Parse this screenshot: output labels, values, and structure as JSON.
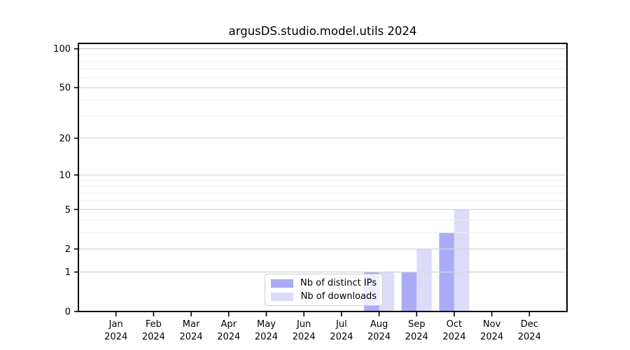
{
  "chart_data": {
    "type": "bar",
    "title": "argusDS.studio.model.utils 2024",
    "categories": [
      "Jan",
      "Feb",
      "Mar",
      "Apr",
      "May",
      "Jun",
      "Jul",
      "Aug",
      "Sep",
      "Oct",
      "Nov",
      "Dec"
    ],
    "category_year": "2024",
    "series": [
      {
        "name": "Nb of distinct IPs",
        "color": "#aaaaf7",
        "values": [
          0,
          0,
          0,
          0,
          0,
          0,
          0,
          1,
          1,
          3,
          0,
          0
        ]
      },
      {
        "name": "Nb of downloads",
        "color": "#dcdcf9",
        "values": [
          0,
          0,
          0,
          0,
          0,
          0,
          0,
          1,
          2,
          5,
          0,
          0
        ]
      }
    ],
    "yscale": "log1p",
    "ylim": [
      0,
      110
    ],
    "yticks_major": [
      0,
      1,
      2,
      5,
      10,
      20,
      50,
      100
    ],
    "yticks_minor": [
      3,
      4,
      6,
      7,
      8,
      9,
      30,
      40,
      60,
      70,
      80,
      90
    ],
    "grid": {
      "major_color": "#d6d6d6",
      "top_major_color": "#c9c9c9",
      "minor_color": "#efefef",
      "show": true
    },
    "axis_color": "#000000",
    "tick_label_color": "#000000",
    "legend": {
      "position": "lower center-left",
      "entries": [
        "Nb of distinct IPs",
        "Nb of downloads"
      ]
    }
  }
}
